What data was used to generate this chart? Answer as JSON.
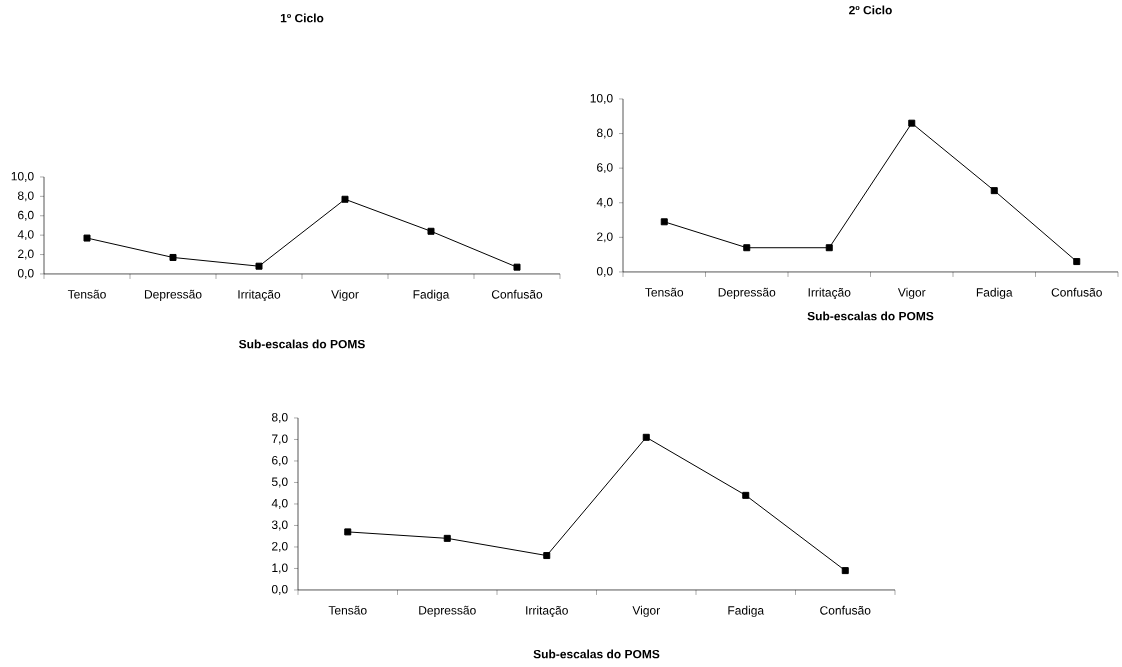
{
  "chart_data": [
    {
      "type": "line",
      "title": "1º Ciclo",
      "xlabel": "Sub-escalas do POMS",
      "categories": [
        "Tensão",
        "Depressão",
        "Irritação",
        "Vigor",
        "Fadiga",
        "Confusão"
      ],
      "values": [
        3.7,
        1.7,
        0.8,
        7.7,
        4.4,
        0.7
      ],
      "color": "#000000",
      "marker": "square",
      "line_style": "solid",
      "ylim": [
        0,
        10
      ],
      "yticks": [
        {
          "value": 0,
          "label": "0,0"
        },
        {
          "value": 2,
          "label": "2,0"
        },
        {
          "value": 4,
          "label": "4,0"
        },
        {
          "value": 6,
          "label": "6,0"
        },
        {
          "value": 8,
          "label": "8,0"
        },
        {
          "value": 10,
          "label": "10,0"
        }
      ]
    },
    {
      "type": "line",
      "title": "2º Ciclo",
      "xlabel": "Sub-escalas do POMS",
      "categories": [
        "Tensão",
        "Depressão",
        "Irritação",
        "Vigor",
        "Fadiga",
        "Confusão"
      ],
      "values": [
        2.9,
        1.4,
        1.4,
        8.6,
        4.7,
        0.6
      ],
      "color": "#000000",
      "marker": "square",
      "line_style": "solid",
      "ylim": [
        0,
        10
      ],
      "yticks": [
        {
          "value": 0,
          "label": "0,0"
        },
        {
          "value": 2,
          "label": "2,0"
        },
        {
          "value": 4,
          "label": "4,0"
        },
        {
          "value": 6,
          "label": "6,0"
        },
        {
          "value": 8,
          "label": "8,0"
        },
        {
          "value": 10,
          "label": "10,0"
        }
      ]
    },
    {
      "type": "line",
      "xlabel": "Sub-escalas do POMS",
      "categories": [
        "Tensão",
        "Depressão",
        "Irritação",
        "Vigor",
        "Fadiga",
        "Confusão"
      ],
      "values": [
        2.7,
        2.4,
        1.6,
        7.1,
        4.4,
        0.9
      ],
      "color": "#000000",
      "marker": "square",
      "line_style": "solid",
      "ylim": [
        0,
        8
      ],
      "yticks": [
        {
          "value": 0,
          "label": "0,0"
        },
        {
          "value": 1,
          "label": "1,0"
        },
        {
          "value": 2,
          "label": "2,0"
        },
        {
          "value": 3,
          "label": "3,0"
        },
        {
          "value": 4,
          "label": "4,0"
        },
        {
          "value": 5,
          "label": "5,0"
        },
        {
          "value": 6,
          "label": "6,0"
        },
        {
          "value": 7,
          "label": "7,0"
        },
        {
          "value": 8,
          "label": "8,0"
        }
      ]
    }
  ]
}
